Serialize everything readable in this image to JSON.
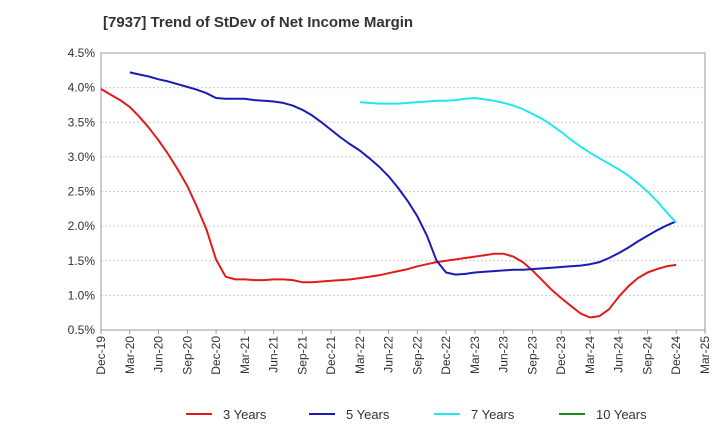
{
  "chart_data": {
    "type": "line",
    "title": "[7937]  Trend of StDev of Net Income Margin",
    "xlabel": "",
    "ylabel": "",
    "x_ticks": [
      "Dec-19",
      "Mar-20",
      "Jun-20",
      "Sep-20",
      "Dec-20",
      "Mar-21",
      "Jun-21",
      "Sep-21",
      "Dec-21",
      "Mar-22",
      "Jun-22",
      "Sep-22",
      "Dec-22",
      "Mar-23",
      "Jun-23",
      "Sep-23",
      "Dec-23",
      "Mar-24",
      "Jun-24",
      "Sep-24",
      "Dec-24",
      "Mar-25"
    ],
    "y_ticks": [
      "0.5%",
      "1.0%",
      "1.5%",
      "2.0%",
      "2.5%",
      "3.0%",
      "3.5%",
      "4.0%",
      "4.5%"
    ],
    "ylim": [
      0.5,
      4.5
    ],
    "y_unit": "%",
    "grid": "horizontal",
    "legend_position": "bottom",
    "series": [
      {
        "name": "3 Years",
        "color": "#e31a1c",
        "points": [
          [
            "Dec-19",
            3.98
          ],
          [
            "Jan-20",
            3.9
          ],
          [
            "Feb-20",
            3.82
          ],
          [
            "Mar-20",
            3.72
          ],
          [
            "Apr-20",
            3.58
          ],
          [
            "May-20",
            3.42
          ],
          [
            "Jun-20",
            3.24
          ],
          [
            "Jul-20",
            3.04
          ],
          [
            "Aug-20",
            2.82
          ],
          [
            "Sep-20",
            2.58
          ],
          [
            "Oct-20",
            2.28
          ],
          [
            "Nov-20",
            1.95
          ],
          [
            "Dec-20",
            1.52
          ],
          [
            "Jan-21",
            1.27
          ],
          [
            "Feb-21",
            1.23
          ],
          [
            "Mar-21",
            1.23
          ],
          [
            "Apr-21",
            1.22
          ],
          [
            "May-21",
            1.22
          ],
          [
            "Jun-21",
            1.23
          ],
          [
            "Jul-21",
            1.23
          ],
          [
            "Aug-21",
            1.22
          ],
          [
            "Sep-21",
            1.19
          ],
          [
            "Oct-21",
            1.19
          ],
          [
            "Nov-21",
            1.2
          ],
          [
            "Dec-21",
            1.21
          ],
          [
            "Jan-22",
            1.22
          ],
          [
            "Feb-22",
            1.23
          ],
          [
            "Mar-22",
            1.25
          ],
          [
            "Apr-22",
            1.27
          ],
          [
            "May-22",
            1.29
          ],
          [
            "Jun-22",
            1.32
          ],
          [
            "Jul-22",
            1.35
          ],
          [
            "Aug-22",
            1.38
          ],
          [
            "Sep-22",
            1.42
          ],
          [
            "Oct-22",
            1.45
          ],
          [
            "Nov-22",
            1.48
          ],
          [
            "Dec-22",
            1.5
          ],
          [
            "Jan-23",
            1.52
          ],
          [
            "Feb-23",
            1.54
          ],
          [
            "Mar-23",
            1.56
          ],
          [
            "Apr-23",
            1.58
          ],
          [
            "May-23",
            1.6
          ],
          [
            "Jun-23",
            1.6
          ],
          [
            "Jul-23",
            1.56
          ],
          [
            "Aug-23",
            1.48
          ],
          [
            "Sep-23",
            1.36
          ],
          [
            "Oct-23",
            1.22
          ],
          [
            "Nov-23",
            1.08
          ],
          [
            "Dec-23",
            0.96
          ],
          [
            "Jan-24",
            0.85
          ],
          [
            "Feb-24",
            0.74
          ],
          [
            "Mar-24",
            0.68
          ],
          [
            "Apr-24",
            0.7
          ],
          [
            "May-24",
            0.8
          ],
          [
            "Jun-24",
            0.98
          ],
          [
            "Jul-24",
            1.13
          ],
          [
            "Aug-24",
            1.25
          ],
          [
            "Sep-24",
            1.33
          ],
          [
            "Oct-24",
            1.38
          ],
          [
            "Nov-24",
            1.42
          ],
          [
            "Dec-24",
            1.44
          ]
        ]
      },
      {
        "name": "5 Years",
        "color": "#1a1ab8",
        "points": [
          [
            "Mar-20",
            4.22
          ],
          [
            "Apr-20",
            4.19
          ],
          [
            "May-20",
            4.16
          ],
          [
            "Jun-20",
            4.12
          ],
          [
            "Jul-20",
            4.09
          ],
          [
            "Aug-20",
            4.05
          ],
          [
            "Sep-20",
            4.01
          ],
          [
            "Oct-20",
            3.97
          ],
          [
            "Nov-20",
            3.92
          ],
          [
            "Dec-20",
            3.85
          ],
          [
            "Jan-21",
            3.84
          ],
          [
            "Feb-21",
            3.84
          ],
          [
            "Mar-21",
            3.84
          ],
          [
            "Apr-21",
            3.82
          ],
          [
            "May-21",
            3.81
          ],
          [
            "Jun-21",
            3.8
          ],
          [
            "Jul-21",
            3.78
          ],
          [
            "Aug-21",
            3.74
          ],
          [
            "Sep-21",
            3.68
          ],
          [
            "Oct-21",
            3.6
          ],
          [
            "Nov-21",
            3.5
          ],
          [
            "Dec-21",
            3.39
          ],
          [
            "Jan-22",
            3.28
          ],
          [
            "Feb-22",
            3.18
          ],
          [
            "Mar-22",
            3.09
          ],
          [
            "Apr-22",
            2.98
          ],
          [
            "May-22",
            2.86
          ],
          [
            "Jun-22",
            2.72
          ],
          [
            "Jul-22",
            2.55
          ],
          [
            "Aug-22",
            2.36
          ],
          [
            "Sep-22",
            2.14
          ],
          [
            "Oct-22",
            1.86
          ],
          [
            "Nov-22",
            1.5
          ],
          [
            "Dec-22",
            1.33
          ],
          [
            "Jan-23",
            1.3
          ],
          [
            "Feb-23",
            1.31
          ],
          [
            "Mar-23",
            1.33
          ],
          [
            "Apr-23",
            1.34
          ],
          [
            "May-23",
            1.35
          ],
          [
            "Jun-23",
            1.36
          ],
          [
            "Jul-23",
            1.37
          ],
          [
            "Aug-23",
            1.37
          ],
          [
            "Sep-23",
            1.38
          ],
          [
            "Oct-23",
            1.39
          ],
          [
            "Nov-23",
            1.4
          ],
          [
            "Dec-23",
            1.41
          ],
          [
            "Jan-24",
            1.42
          ],
          [
            "Feb-24",
            1.43
          ],
          [
            "Mar-24",
            1.45
          ],
          [
            "Apr-24",
            1.48
          ],
          [
            "May-24",
            1.54
          ],
          [
            "Jun-24",
            1.61
          ],
          [
            "Jul-24",
            1.69
          ],
          [
            "Aug-24",
            1.78
          ],
          [
            "Sep-24",
            1.86
          ],
          [
            "Oct-24",
            1.94
          ],
          [
            "Nov-24",
            2.01
          ],
          [
            "Dec-24",
            2.07
          ]
        ]
      },
      {
        "name": "7 Years",
        "color": "#22e6f0",
        "points": [
          [
            "Mar-22",
            3.79
          ],
          [
            "Apr-22",
            3.78
          ],
          [
            "May-22",
            3.77
          ],
          [
            "Jun-22",
            3.77
          ],
          [
            "Jul-22",
            3.77
          ],
          [
            "Aug-22",
            3.78
          ],
          [
            "Sep-22",
            3.79
          ],
          [
            "Oct-22",
            3.8
          ],
          [
            "Nov-22",
            3.81
          ],
          [
            "Dec-22",
            3.81
          ],
          [
            "Jan-23",
            3.82
          ],
          [
            "Feb-23",
            3.84
          ],
          [
            "Mar-23",
            3.85
          ],
          [
            "Apr-23",
            3.83
          ],
          [
            "May-23",
            3.81
          ],
          [
            "Jun-23",
            3.78
          ],
          [
            "Jul-23",
            3.74
          ],
          [
            "Aug-23",
            3.69
          ],
          [
            "Sep-23",
            3.62
          ],
          [
            "Oct-23",
            3.55
          ],
          [
            "Nov-23",
            3.46
          ],
          [
            "Dec-23",
            3.36
          ],
          [
            "Jan-24",
            3.25
          ],
          [
            "Feb-24",
            3.15
          ],
          [
            "Mar-24",
            3.06
          ],
          [
            "Apr-24",
            2.98
          ],
          [
            "May-24",
            2.9
          ],
          [
            "Jun-24",
            2.82
          ],
          [
            "Jul-24",
            2.73
          ],
          [
            "Aug-24",
            2.62
          ],
          [
            "Sep-24",
            2.5
          ],
          [
            "Oct-24",
            2.36
          ],
          [
            "Nov-24",
            2.2
          ],
          [
            "Dec-24",
            2.05
          ]
        ]
      },
      {
        "name": "10 Years",
        "color": "#1a8a1a",
        "points": []
      }
    ]
  }
}
